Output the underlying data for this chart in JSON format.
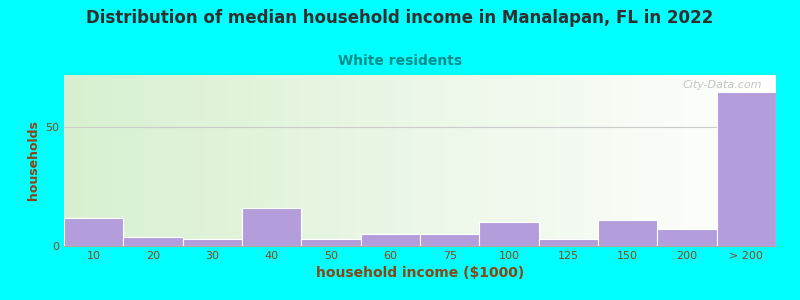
{
  "title": "Distribution of median household income in Manalapan, FL in 2022",
  "subtitle": "White residents",
  "xlabel": "household income ($1000)",
  "ylabel": "households",
  "background_color": "#00FFFF",
  "bar_color": "#b39ddb",
  "categories": [
    "10",
    "20",
    "30",
    "40",
    "50",
    "60",
    "75",
    "100",
    "125",
    "150",
    "200",
    "> 200"
  ],
  "values": [
    12,
    4,
    3,
    16,
    3,
    5,
    5,
    10,
    3,
    11,
    7,
    65
  ],
  "ylim": [
    0,
    72
  ],
  "yticks": [
    0,
    50
  ],
  "grid_color": "#cccccc",
  "title_color": "#2f2f2f",
  "subtitle_color": "#008B8B",
  "axis_label_color": "#8B4513",
  "tick_label_color": "#8B4513",
  "watermark": "City-Data.com",
  "title_fontsize": 12,
  "subtitle_fontsize": 10,
  "xlabel_fontsize": 10,
  "ylabel_fontsize": 9,
  "plot_bg_left": "#d8f0d0",
  "plot_bg_right": "#ffffff"
}
